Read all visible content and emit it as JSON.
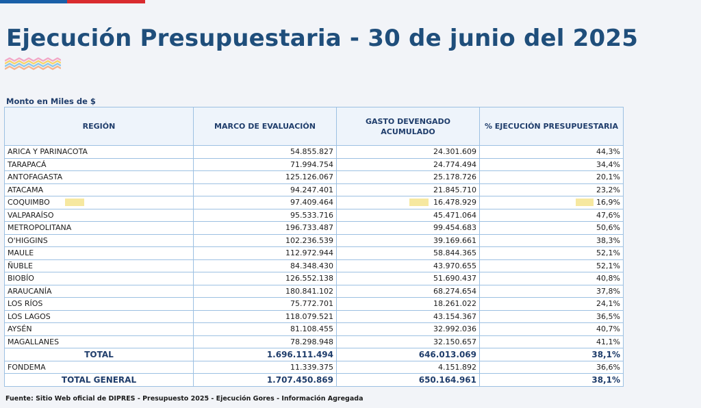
{
  "header": {
    "title": "Ejecución Presupuestaria - 30 de junio del 2025",
    "subtitle": "Monto en Miles de $"
  },
  "table": {
    "columns": [
      "REGIÓN",
      "MARCO DE EVALUACIÓN",
      "GASTO DEVENGADO ACUMULADO",
      "% EJECUCIÓN PRESUPUESTARIA"
    ],
    "rows": [
      [
        "ARICA Y PARINACOTA",
        "54.855.827",
        "24.301.609",
        "44,3%"
      ],
      [
        "TARAPACÁ",
        "71.994.754",
        "24.774.494",
        "34,4%"
      ],
      [
        "ANTOFAGASTA",
        "125.126.067",
        "25.178.726",
        "20,1%"
      ],
      [
        "ATACAMA",
        "94.247.401",
        "21.845.710",
        "23,2%"
      ],
      [
        "COQUIMBO",
        "97.409.464",
        "16.478.929",
        "16,9%"
      ],
      [
        "VALPARAÍSO",
        "95.533.716",
        "45.471.064",
        "47,6%"
      ],
      [
        "METROPOLITANA",
        "196.733.487",
        "99.454.683",
        "50,6%"
      ],
      [
        "O'HIGGINS",
        "102.236.539",
        "39.169.661",
        "38,3%"
      ],
      [
        "MAULE",
        "112.972.944",
        "58.844.365",
        "52,1%"
      ],
      [
        "ÑUBLE",
        "84.348.430",
        "43.970.655",
        "52,1%"
      ],
      [
        "BIOBÍO",
        "126.552.138",
        "51.690.437",
        "40,8%"
      ],
      [
        "ARAUCANÍA",
        "180.841.102",
        "68.274.654",
        "37,8%"
      ],
      [
        "LOS RÍOS",
        "75.772.701",
        "18.261.022",
        "24,1%"
      ],
      [
        "LOS LAGOS",
        "118.079.521",
        "43.154.367",
        "36,5%"
      ],
      [
        "AYSÉN",
        "81.108.455",
        "32.992.036",
        "40,7%"
      ],
      [
        "MAGALLANES",
        "78.298.948",
        "32.150.657",
        "41,1%"
      ]
    ],
    "total": [
      "TOTAL",
      "1.696.111.494",
      "646.013.069",
      "38,1%"
    ],
    "fondema": [
      "FONDEMA",
      "11.339.375",
      "4.151.892",
      "36,6%"
    ],
    "total_general": [
      "TOTAL GENERAL",
      "1.707.450.869",
      "650.164.961",
      "38,1%"
    ],
    "highlighted_row_index": 4
  },
  "footer": "Fuente: Sitio Web oficial de DIPRES - Presupuesto 2025 - Ejecución Gores - Información Agregada",
  "colors": {
    "title": "#1f4e7b",
    "border": "#9cc0e2",
    "flag_blue": "#1a5fa8",
    "flag_red": "#d92b2f",
    "highlight": "#f6e8a0"
  }
}
